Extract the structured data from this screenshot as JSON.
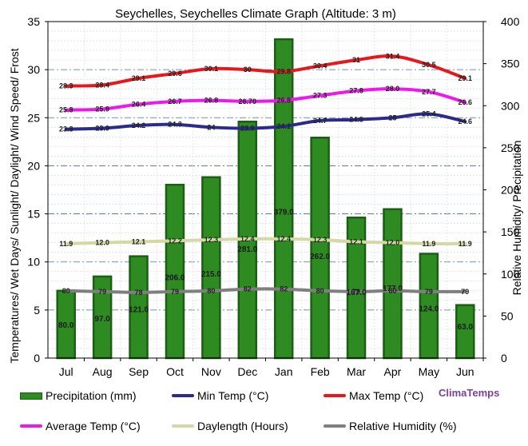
{
  "chart_data": {
    "type": "bar",
    "title": "Seychelles, Seychelles Climate Graph (Altitude: 3 m)",
    "ylabel_left": "Temperatures/ Wet Days/ Sunlight/ Daylight/ Wind Speed/ Frost",
    "ylabel_right": "Relative Humidity/ Precipitation",
    "ylim_left": [
      0,
      35
    ],
    "yticks_left": [
      "0",
      "5",
      "10",
      "15",
      "20",
      "25",
      "30",
      "35"
    ],
    "ylim_right": [
      0,
      400
    ],
    "yticks_right": [
      "0",
      "50",
      "100",
      "150",
      "200",
      "250",
      "300",
      "350",
      "400"
    ],
    "categories": [
      "Jul",
      "Aug",
      "Sep",
      "Oct",
      "Nov",
      "Dec",
      "Jan",
      "Feb",
      "Mar",
      "Apr",
      "May",
      "Jun"
    ],
    "precipitation": {
      "name": "Precipitation (mm)",
      "color": "#2e8b22",
      "values": [
        80.0,
        97.0,
        121.0,
        206.0,
        215.0,
        281.0,
        379.0,
        262.0,
        167.0,
        177.0,
        124.0,
        63.0
      ],
      "labels": [
        "80.0",
        "97.0",
        "121.0",
        "206.0",
        "215.0",
        "281.0",
        "379.0",
        "262.0",
        "167.0",
        "177.0",
        "124.0",
        "63.0"
      ]
    },
    "series": [
      {
        "name": "Min Temp (°C)",
        "color": "#2b2b8f",
        "values": [
          23.8,
          23.9,
          24.2,
          24.3,
          24.0,
          23.9,
          24.1,
          24.7,
          24.8,
          25.0,
          25.4,
          24.6
        ],
        "labels": [
          "23.8",
          "23.9",
          "24.2",
          "24.3",
          "24",
          "23.9",
          "24.1",
          "24.7",
          "24.8",
          "25",
          "25.4",
          "24.6"
        ]
      },
      {
        "name": "Max Temp (°C)",
        "color": "#e8171b",
        "values": [
          28.3,
          28.4,
          29.1,
          29.6,
          30.1,
          30.0,
          29.8,
          30.4,
          31.0,
          31.4,
          30.5,
          29.1
        ],
        "labels": [
          "28.3",
          "28.4",
          "29.1",
          "29.6",
          "30.1",
          "30",
          "29.8",
          "30.4",
          "31",
          "31.4",
          "30.5",
          "29.1"
        ]
      },
      {
        "name": "Average Temp (°C)",
        "color": "#ee17ee",
        "values": [
          25.8,
          25.9,
          26.4,
          26.7,
          26.8,
          26.7,
          26.8,
          27.3,
          27.8,
          28.0,
          27.7,
          26.6
        ],
        "labels": [
          "25.8",
          "25.9",
          "26.4",
          "26.7",
          "26.8",
          "26.70",
          "26.8",
          "27.3",
          "27.8",
          "28.0",
          "27.7",
          "26.6"
        ]
      },
      {
        "name": "Daylength (Hours)",
        "color": "#d4d9a4",
        "values": [
          11.9,
          12.0,
          12.1,
          12.2,
          12.3,
          12.4,
          12.4,
          12.3,
          12.1,
          12.0,
          11.9,
          11.9
        ],
        "labels": [
          "11.9",
          "12.0",
          "12.1",
          "12.2",
          "12.3",
          "12.4",
          "12.4",
          "12.3",
          "12.1",
          "12.0",
          "11.9",
          "11.9"
        ]
      },
      {
        "name": "Relative Humidity (%)",
        "color": "#7f7f7f",
        "axis": "right",
        "values": [
          80,
          79,
          78,
          79,
          80,
          82,
          82,
          80,
          79,
          80,
          79,
          79
        ],
        "labels": [
          "80",
          "79",
          "78",
          "79",
          "80",
          "82",
          "82",
          "80",
          "79",
          "80",
          "79",
          "79"
        ]
      }
    ],
    "grid": true,
    "legend_position": "bottom"
  },
  "legend": {
    "items": [
      {
        "label": "Precipitation (mm)"
      },
      {
        "label": "Min Temp (°C)"
      },
      {
        "label": "Max Temp (°C)"
      },
      {
        "label": "Average Temp (°C)"
      },
      {
        "label": "Daylength (Hours)"
      },
      {
        "label": "Relative Humidity (%)"
      }
    ]
  },
  "brand": "ClimaTemps"
}
